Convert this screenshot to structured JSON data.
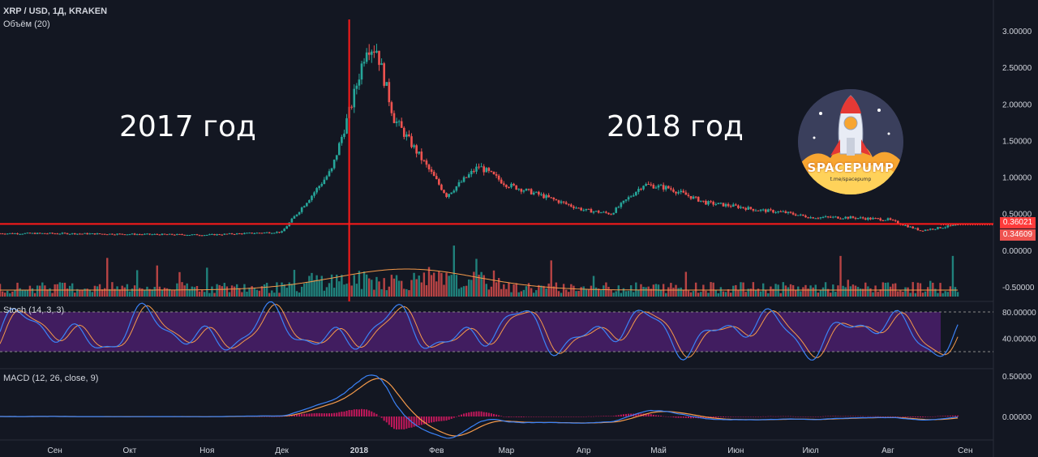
{
  "header": {
    "symbol": "XRP / USD, 1Д, KRAKEN",
    "volume_label": "Объём (20)"
  },
  "annotations": {
    "year_2017": "2017 год",
    "year_2018": "2018 год"
  },
  "logo": {
    "title": "SPACEPUMP",
    "subtitle": "t.me/spacepump"
  },
  "price_tags": {
    "level": "0.36021",
    "last": "0.34609",
    "level_color": "#ff3b3b",
    "last_color": "#ef5350"
  },
  "indicators": {
    "stoch_label": "Stoch (14, 3, 3)",
    "macd_label": "MACD (12, 26, close, 9)"
  },
  "colors": {
    "up": "#26a69a",
    "down": "#ef5350",
    "level_line": "#ff1a1a",
    "stoch_band": "#4a1f6b",
    "stoch_k": "#3b82f6",
    "stoch_d": "#f59a4a",
    "macd_line": "#3b82f6",
    "signal_line": "#f59a4a",
    "hist": "#c2185b"
  },
  "chart_data": [
    {
      "type": "candlestick",
      "title": "XRP / USD, 1Д, KRAKEN",
      "y_ticks": [
        "3.00000",
        "2.50000",
        "2.00000",
        "1.50000",
        "1.00000",
        "0.50000",
        "0.00000",
        "-0.50000"
      ],
      "ylim": [
        -0.5,
        3.0
      ],
      "x_ticks": [
        "Сен",
        "Окт",
        "Ноя",
        "Дек",
        "2018",
        "Фев",
        "Мар",
        "Апр",
        "Май",
        "Июн",
        "Июл",
        "Авг",
        "Сен"
      ],
      "horizontal_level": 0.36021,
      "last_price": 0.34609,
      "approx_path": [
        {
          "date": "2017-09-01",
          "close": 0.23
        },
        {
          "date": "2017-10-01",
          "close": 0.22
        },
        {
          "date": "2017-11-01",
          "close": 0.21
        },
        {
          "date": "2017-12-01",
          "close": 0.25
        },
        {
          "date": "2017-12-13",
          "close": 0.75
        },
        {
          "date": "2017-12-21",
          "close": 1.1
        },
        {
          "date": "2017-12-29",
          "close": 2.0
        },
        {
          "date": "2018-01-04",
          "close": 2.8
        },
        {
          "date": "2018-01-08",
          "close": 2.75
        },
        {
          "date": "2018-01-15",
          "close": 1.8
        },
        {
          "date": "2018-01-25",
          "close": 1.3
        },
        {
          "date": "2018-02-05",
          "close": 0.75
        },
        {
          "date": "2018-02-18",
          "close": 1.15
        },
        {
          "date": "2018-03-01",
          "close": 0.9
        },
        {
          "date": "2018-03-15",
          "close": 0.75
        },
        {
          "date": "2018-04-01",
          "close": 0.55
        },
        {
          "date": "2018-04-12",
          "close": 0.5
        },
        {
          "date": "2018-04-25",
          "close": 0.9
        },
        {
          "date": "2018-05-05",
          "close": 0.85
        },
        {
          "date": "2018-05-20",
          "close": 0.65
        },
        {
          "date": "2018-06-01",
          "close": 0.6
        },
        {
          "date": "2018-06-10",
          "close": 0.55
        },
        {
          "date": "2018-06-20",
          "close": 0.52
        },
        {
          "date": "2018-07-01",
          "close": 0.45
        },
        {
          "date": "2018-07-15",
          "close": 0.45
        },
        {
          "date": "2018-08-01",
          "close": 0.42
        },
        {
          "date": "2018-08-14",
          "close": 0.27
        },
        {
          "date": "2018-08-28",
          "close": 0.34
        }
      ]
    },
    {
      "type": "line",
      "title": "Stoch (14, 3, 3)",
      "y_ticks": [
        "80.00000",
        "40.00000"
      ],
      "band": [
        20,
        80
      ]
    },
    {
      "type": "line",
      "title": "MACD (12, 26, close, 9)",
      "y_ticks": [
        "0.50000",
        "0.00000"
      ]
    }
  ]
}
